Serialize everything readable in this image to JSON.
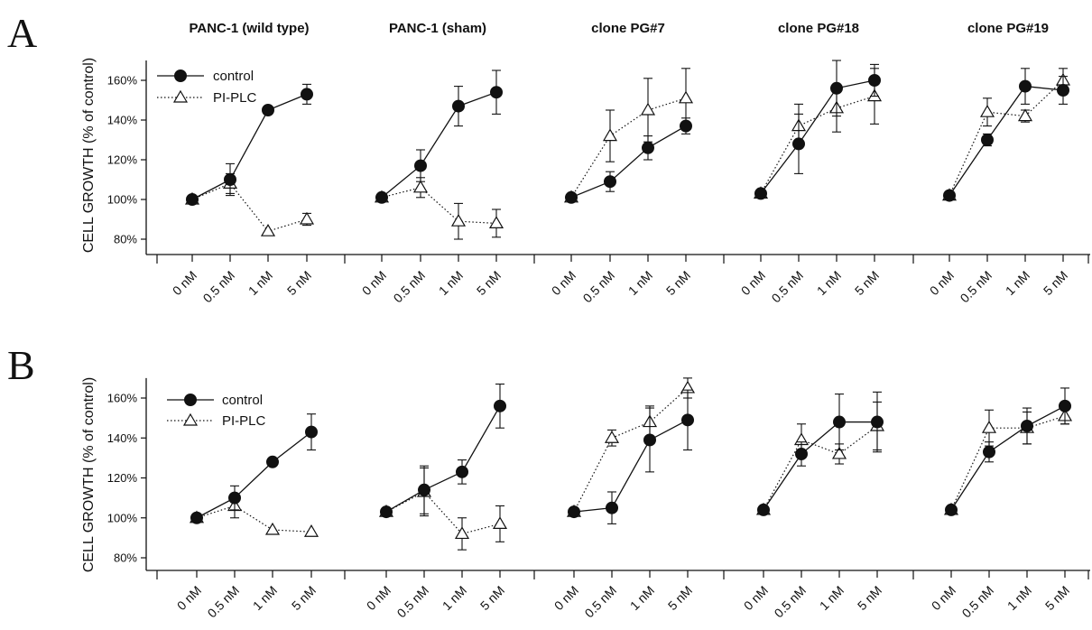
{
  "panel_letters": [
    "A",
    "B"
  ],
  "groups": [
    "PANC-1 (wild type)",
    "PANC-1 (sham)",
    "clone PG#7",
    "clone PG#18",
    "clone PG#19"
  ],
  "chart_data": [
    {
      "type": "line",
      "panel": "A",
      "ylabel": "CELL GROWTH (% of control)",
      "ylim": [
        75,
        170
      ],
      "yticks": [
        80,
        100,
        120,
        140,
        160
      ],
      "ytick_labels": [
        "80%",
        "100%",
        "120%",
        "140%",
        "160%"
      ],
      "categories": [
        "0 nM",
        "0.5 nM",
        "1 nM",
        "5 nM"
      ],
      "legend": {
        "position": "top-left",
        "entries": [
          "control",
          "PI-PLC"
        ]
      },
      "groups": [
        {
          "name": "PANC-1 (wild type)",
          "series": [
            {
              "name": "control",
              "values": [
                100,
                110,
                145,
                153
              ],
              "errors": [
                1,
                8,
                2,
                5
              ]
            },
            {
              "name": "PI-PLC",
              "values": [
                100,
                108,
                84,
                90
              ],
              "errors": [
                1,
                5,
                1,
                3
              ]
            }
          ]
        },
        {
          "name": "PANC-1 (sham)",
          "series": [
            {
              "name": "control",
              "values": [
                101,
                117,
                147,
                154
              ],
              "errors": [
                1,
                8,
                10,
                11
              ]
            },
            {
              "name": "PI-PLC",
              "values": [
                101,
                106,
                89,
                88
              ],
              "errors": [
                1,
                5,
                9,
                7
              ]
            }
          ]
        },
        {
          "name": "clone PG#7",
          "series": [
            {
              "name": "control",
              "values": [
                101,
                109,
                126,
                137
              ],
              "errors": [
                1,
                5,
                6,
                4
              ]
            },
            {
              "name": "PI-PLC",
              "values": [
                101,
                132,
                145,
                151
              ],
              "errors": [
                1,
                13,
                16,
                15
              ]
            }
          ]
        },
        {
          "name": "clone PG#18",
          "series": [
            {
              "name": "control",
              "values": [
                103,
                128,
                156,
                160
              ],
              "errors": [
                1,
                15,
                14,
                8
              ]
            },
            {
              "name": "PI-PLC",
              "values": [
                103,
                137,
                146,
                152
              ],
              "errors": [
                1,
                11,
                12,
                14
              ]
            }
          ]
        },
        {
          "name": "clone PG#19",
          "series": [
            {
              "name": "control",
              "values": [
                102,
                130,
                157,
                155
              ],
              "errors": [
                1,
                3,
                9,
                7
              ]
            },
            {
              "name": "PI-PLC",
              "values": [
                102,
                144,
                142,
                160
              ],
              "errors": [
                1,
                7,
                3,
                6
              ]
            }
          ]
        }
      ]
    },
    {
      "type": "line",
      "panel": "B",
      "ylabel": "CELL GROWTH (% of control)",
      "ylim": [
        75,
        170
      ],
      "yticks": [
        80,
        100,
        120,
        140,
        160
      ],
      "ytick_labels": [
        "80%",
        "100%",
        "120%",
        "140%",
        "160%"
      ],
      "categories": [
        "0 nM",
        "0.5 nM",
        "1 nM",
        "5 nM"
      ],
      "legend": {
        "position": "top-left",
        "entries": [
          "control",
          "PI-PLC"
        ]
      },
      "groups": [
        {
          "name": "PANC-1 (wild type)",
          "series": [
            {
              "name": "control",
              "values": [
                100,
                110,
                128,
                143
              ],
              "errors": [
                1,
                6,
                1,
                9
              ]
            },
            {
              "name": "PI-PLC",
              "values": [
                100,
                106,
                94,
                93
              ],
              "errors": [
                1,
                6,
                1,
                1
              ]
            }
          ]
        },
        {
          "name": "PANC-1 (sham)",
          "series": [
            {
              "name": "control",
              "values": [
                103,
                114,
                123,
                156
              ],
              "errors": [
                1,
                12,
                6,
                11
              ]
            },
            {
              "name": "PI-PLC",
              "values": [
                103,
                113,
                92,
                97
              ],
              "errors": [
                1,
                12,
                8,
                9
              ]
            }
          ]
        },
        {
          "name": "clone PG#7",
          "series": [
            {
              "name": "control",
              "values": [
                103,
                105,
                139,
                149
              ],
              "errors": [
                1,
                8,
                16,
                15
              ]
            },
            {
              "name": "PI-PLC",
              "values": [
                103,
                140,
                148,
                165
              ],
              "errors": [
                1,
                4,
                8,
                5
              ]
            }
          ]
        },
        {
          "name": "clone PG#18",
          "series": [
            {
              "name": "control",
              "values": [
                104,
                132,
                148,
                148
              ],
              "errors": [
                1,
                6,
                14,
                15
              ]
            },
            {
              "name": "PI-PLC",
              "values": [
                104,
                139,
                132,
                146
              ],
              "errors": [
                1,
                8,
                5,
                12
              ]
            }
          ]
        },
        {
          "name": "clone PG#19",
          "series": [
            {
              "name": "control",
              "values": [
                104,
                133,
                146,
                156
              ],
              "errors": [
                1,
                5,
                9,
                9
              ]
            },
            {
              "name": "PI-PLC",
              "values": [
                104,
                145,
                145,
                151
              ],
              "errors": [
                1,
                9,
                8,
                4
              ]
            }
          ]
        }
      ]
    }
  ]
}
